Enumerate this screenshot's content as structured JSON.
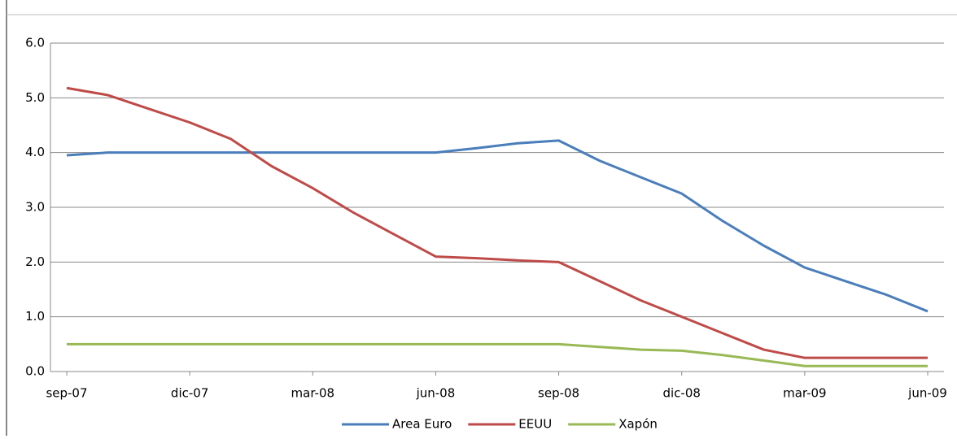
{
  "chart_data": {
    "type": "line",
    "categories": [
      "sep-07",
      null,
      null,
      "dic-07",
      null,
      null,
      "mar-08",
      null,
      null,
      "jun-08",
      null,
      null,
      "sep-08",
      null,
      null,
      "dic-08",
      null,
      null,
      "mar-09",
      null,
      null,
      "jun-09"
    ],
    "series": [
      {
        "name": "Area Euro",
        "color": "#4a7ebb",
        "values": [
          3.95,
          4.0,
          4.0,
          4.0,
          4.0,
          4.0,
          4.0,
          4.0,
          4.0,
          4.0,
          4.08,
          4.17,
          4.22,
          3.85,
          3.55,
          3.25,
          2.75,
          2.3,
          1.9,
          1.65,
          1.4,
          1.1
        ]
      },
      {
        "name": "EEUU",
        "color": "#be4b48",
        "values": [
          5.18,
          5.05,
          4.8,
          4.55,
          4.25,
          3.75,
          3.35,
          2.9,
          2.5,
          2.1,
          2.07,
          2.03,
          2.0,
          1.65,
          1.3,
          1.0,
          0.7,
          0.4,
          0.25,
          0.25,
          0.25,
          0.25
        ]
      },
      {
        "name": "Xapón",
        "color": "#98b954",
        "values": [
          0.5,
          0.5,
          0.5,
          0.5,
          0.5,
          0.5,
          0.5,
          0.5,
          0.5,
          0.5,
          0.5,
          0.5,
          0.5,
          0.45,
          0.4,
          0.38,
          0.3,
          0.2,
          0.1,
          0.1,
          0.1,
          0.1
        ]
      }
    ],
    "ylim": [
      0,
      6
    ],
    "yticks": [
      {
        "value": 0,
        "label": "0.0"
      },
      {
        "value": 1,
        "label": "1.0"
      },
      {
        "value": 2,
        "label": "2.0"
      },
      {
        "value": 3,
        "label": "3.0"
      },
      {
        "value": 4,
        "label": "4.0"
      },
      {
        "value": 5,
        "label": "5.0"
      },
      {
        "value": 6,
        "label": "6.0"
      }
    ],
    "grid": true,
    "legend": "bottom"
  }
}
